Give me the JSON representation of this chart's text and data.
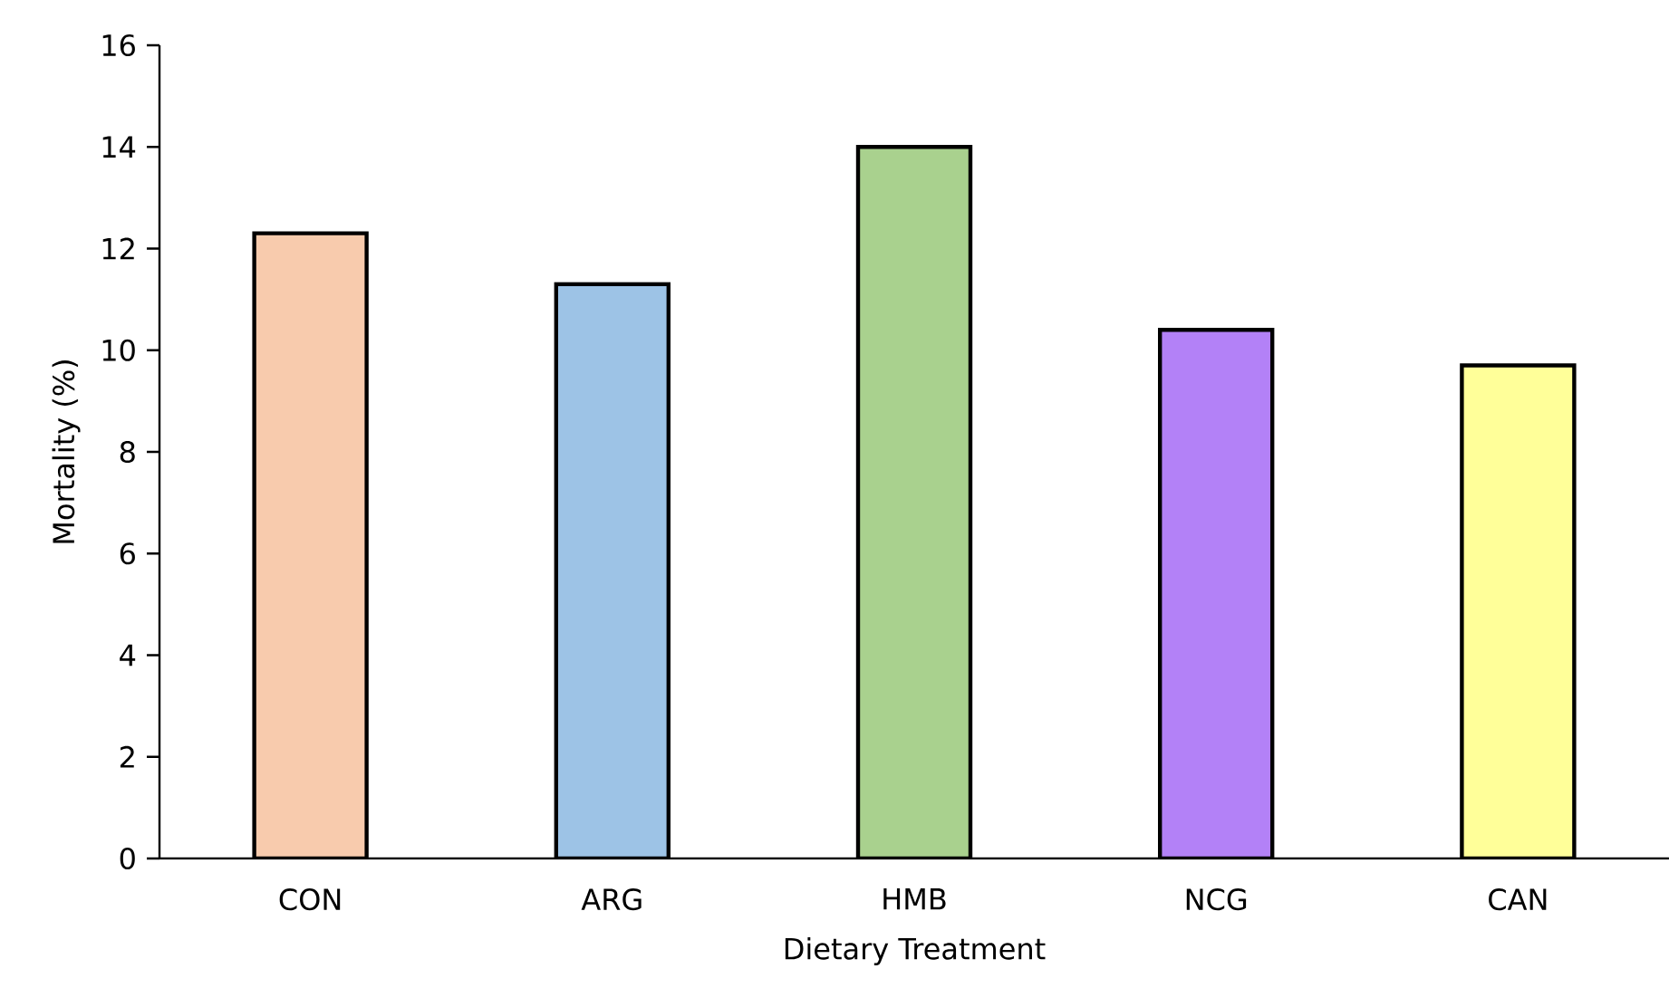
{
  "chart_data": {
    "type": "bar",
    "xlabel": "Dietary Treatment",
    "ylabel": "Mortality (%)",
    "categories": [
      "CON",
      "ARG",
      "HMB",
      "NCG",
      "CAN"
    ],
    "values": [
      12.3,
      11.3,
      14.0,
      10.4,
      9.7
    ],
    "colors": [
      "#f8cbad",
      "#9dc3e6",
      "#a9d18e",
      "#b381f7",
      "#ffff99"
    ],
    "ylim": [
      0,
      16
    ],
    "yticks": [
      0,
      2,
      4,
      6,
      8,
      10,
      12,
      14,
      16
    ]
  }
}
